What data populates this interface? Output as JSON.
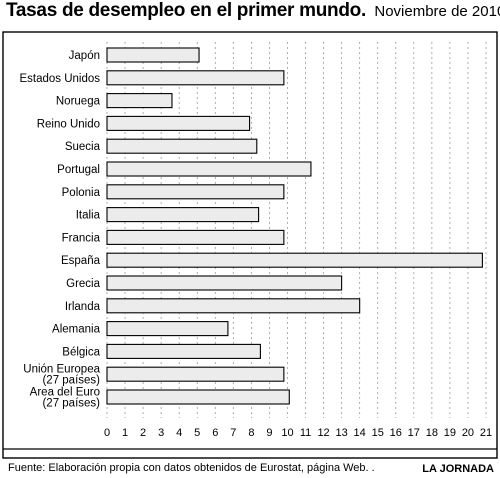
{
  "header": {
    "title": "Tasas de desempleo en el primer mundo.",
    "subtitle": "Noviembre de 2010"
  },
  "footer": {
    "source": "Fuente: Elaboración propia con datos obtenidos de Eurostat, página Web. .",
    "credit": "LA JORNADA"
  },
  "colors": {
    "bar_fill": "#ececec",
    "bar_stroke": "#000000",
    "grid": "#9a9a9a",
    "frame": "#000000"
  },
  "chart_data": {
    "type": "bar",
    "orientation": "horizontal",
    "title": "Tasas de desempleo en el primer mundo.",
    "subtitle": "Noviembre de 2010",
    "categories": [
      [
        "Japón"
      ],
      [
        "Estados Unidos"
      ],
      [
        "Noruega"
      ],
      [
        "Reino Unido"
      ],
      [
        "Suecia"
      ],
      [
        "Portugal"
      ],
      [
        "Polonia"
      ],
      [
        "Italia"
      ],
      [
        "Francia"
      ],
      [
        "España"
      ],
      [
        "Grecia"
      ],
      [
        "Irlanda"
      ],
      [
        "Alemania"
      ],
      [
        "Bélgica"
      ],
      [
        "Unión Europea",
        "(27 países)"
      ],
      [
        "Area del Euro",
        "(27 países)"
      ]
    ],
    "values": [
      5.1,
      9.8,
      3.6,
      7.9,
      8.3,
      11.3,
      9.8,
      8.4,
      9.8,
      20.8,
      13.0,
      14.0,
      6.7,
      8.5,
      9.8,
      10.1
    ],
    "xlim": [
      0,
      21
    ],
    "xticks": [
      0,
      1,
      2,
      3,
      4,
      5,
      6,
      7,
      8,
      9,
      10,
      11,
      12,
      13,
      14,
      15,
      16,
      17,
      18,
      19,
      20,
      21
    ],
    "grid": "vertical dashed",
    "xlabel": "",
    "ylabel": ""
  }
}
